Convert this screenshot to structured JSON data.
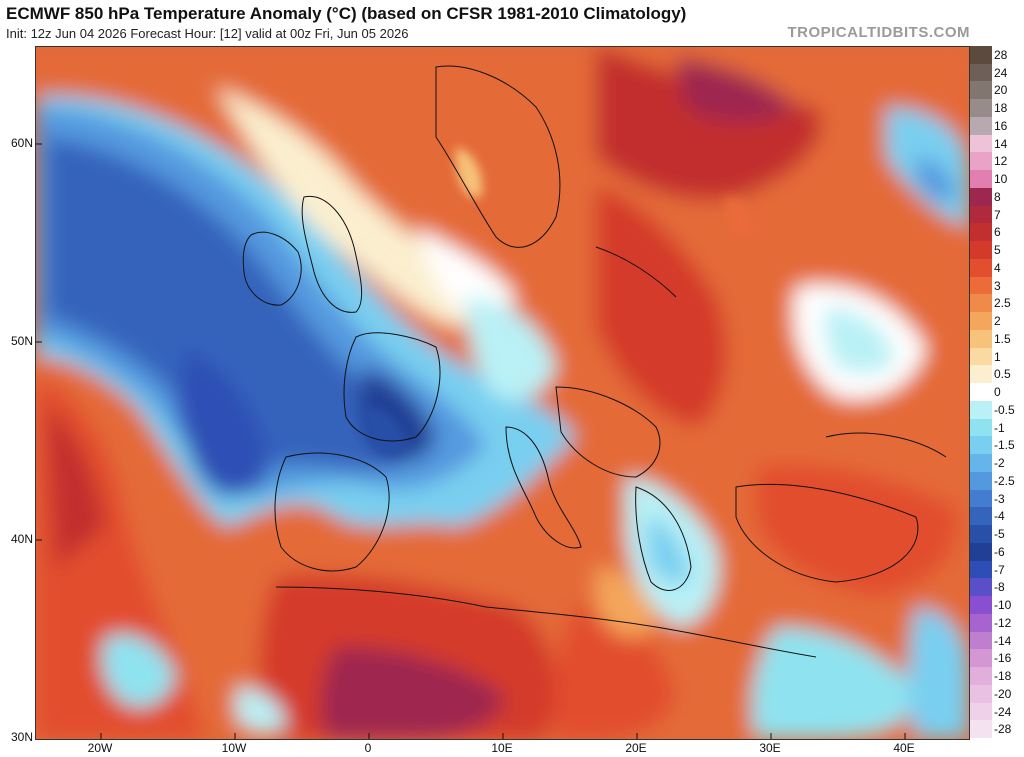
{
  "header": {
    "title": "ECMWF 850 hPa Temperature Anomaly (°C) (based on CFSR 1981-2010 Climatology)",
    "subtitle": "Init: 12z Jun 04 2026   Forecast Hour: [12]   valid at 00z Fri, Jun 05 2026",
    "source": "TROPICALTIDBITS.COM"
  },
  "axes": {
    "lat_labels": [
      "60N",
      "50N",
      "40N",
      "30N"
    ],
    "lon_labels": [
      "20W",
      "10W",
      "0",
      "10E",
      "20E",
      "30E",
      "40E"
    ]
  },
  "colorbar": {
    "entries": [
      {
        "label": "28",
        "color": "#5c4a3d"
      },
      {
        "label": "24",
        "color": "#6e6058"
      },
      {
        "label": "20",
        "color": "#827671"
      },
      {
        "label": "18",
        "color": "#978c89"
      },
      {
        "label": "16",
        "color": "#b8a9b0"
      },
      {
        "label": "14",
        "color": "#eec3da"
      },
      {
        "label": "12",
        "color": "#eaa2c6"
      },
      {
        "label": "10",
        "color": "#e27fb0"
      },
      {
        "label": "8",
        "color": "#9e2750"
      },
      {
        "label": "7",
        "color": "#b0293d"
      },
      {
        "label": "6",
        "color": "#c22f2f"
      },
      {
        "label": "5",
        "color": "#d43a2a"
      },
      {
        "label": "4",
        "color": "#e24e2e"
      },
      {
        "label": "3",
        "color": "#eb6b3a"
      },
      {
        "label": "2.5",
        "color": "#f08a4a"
      },
      {
        "label": "2",
        "color": "#f4a65c"
      },
      {
        "label": "1.5",
        "color": "#f7c27a"
      },
      {
        "label": "1",
        "color": "#f9daa0"
      },
      {
        "label": "0.5",
        "color": "#fbefcf"
      },
      {
        "label": "0",
        "color": "#ffffff"
      },
      {
        "label": "-0.5",
        "color": "#b9f1f6"
      },
      {
        "label": "-1",
        "color": "#8fe3f0"
      },
      {
        "label": "-1.5",
        "color": "#79cff0"
      },
      {
        "label": "-2",
        "color": "#66b5ea"
      },
      {
        "label": "-2.5",
        "color": "#5499df"
      },
      {
        "label": "-3",
        "color": "#437dcf"
      },
      {
        "label": "-4",
        "color": "#3464bc"
      },
      {
        "label": "-5",
        "color": "#2850a8"
      },
      {
        "label": "-6",
        "color": "#213f95"
      },
      {
        "label": "-7",
        "color": "#2d4fb5"
      },
      {
        "label": "-8",
        "color": "#5a4fc8"
      },
      {
        "label": "-10",
        "color": "#8a4fd0"
      },
      {
        "label": "-12",
        "color": "#a763cf"
      },
      {
        "label": "-14",
        "color": "#c07ecf"
      },
      {
        "label": "-16",
        "color": "#d596d4"
      },
      {
        "label": "-18",
        "color": "#e2aedb"
      },
      {
        "label": "-20",
        "color": "#e9c1e2"
      },
      {
        "label": "-24",
        "color": "#efd2e9"
      },
      {
        "label": "-28",
        "color": "#f4e2f0"
      }
    ]
  }
}
